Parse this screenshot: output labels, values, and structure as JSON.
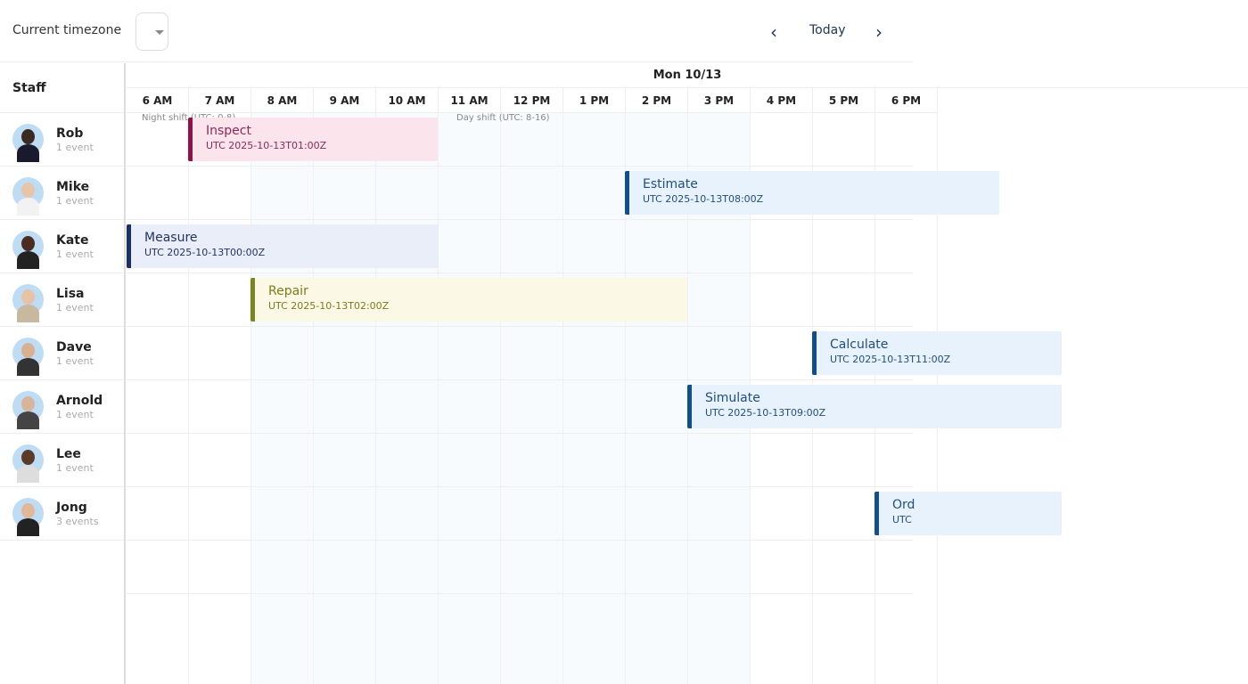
{
  "toolbar": {
    "timezone_label": "Current timezone",
    "timezone_value": "",
    "today": "Today",
    "prev_icon": "chevron-left-icon",
    "next_icon": "chevron-right-icon"
  },
  "staff_header": "Staff",
  "date": "Mon 10/13",
  "hours": [
    "6 AM",
    "7 AM",
    "8 AM",
    "9 AM",
    "10 AM",
    "11 AM",
    "12 PM",
    "1 PM",
    "2 PM",
    "3 PM",
    "4 PM",
    "5 PM",
    "6 PM"
  ],
  "shifts": [
    {
      "label": "Night shift (UTC: 0-8)"
    },
    {
      "label": "Day shift (UTC: 8-16)"
    }
  ],
  "staff": [
    {
      "name": "Rob",
      "count": "1 event"
    },
    {
      "name": "Mike",
      "count": "1 event"
    },
    {
      "name": "Kate",
      "count": "1 event"
    },
    {
      "name": "Lisa",
      "count": "1 event"
    },
    {
      "name": "Dave",
      "count": "1 event"
    },
    {
      "name": "Arnold",
      "count": "1 event"
    },
    {
      "name": "Lee",
      "count": "1 event"
    },
    {
      "name": "Jong",
      "count": "3 events"
    }
  ],
  "events": [
    {
      "title": "Inspect",
      "sub": "UTC 2025-10-13T01:00Z",
      "row": 0,
      "start": 1,
      "end": 5,
      "bg": "#fce4ec",
      "bar": "#8e1245",
      "fg": "#8b2a55"
    },
    {
      "title": "Estimate",
      "sub": "UTC 2025-10-13T08:00Z",
      "row": 1,
      "start": 8,
      "end": 14,
      "bg": "#e8f2fc",
      "bar": "#0f4f8c",
      "fg": "#1f4f80"
    },
    {
      "title": "Measure",
      "sub": "UTC 2025-10-13T00:00Z",
      "row": 2,
      "start": 0,
      "end": 5,
      "bg": "#eaeef8",
      "bar": "#1b2f6b",
      "fg": "#223465"
    },
    {
      "title": "Repair",
      "sub": "UTC 2025-10-13T02:00Z",
      "row": 3,
      "start": 2,
      "end": 9,
      "bg": "#fbf9e6",
      "bar": "#76871f",
      "fg": "#7b7b1c"
    },
    {
      "title": "Calculate",
      "sub": "UTC 2025-10-13T11:00Z",
      "row": 4,
      "start": 11,
      "end": 15,
      "bg": "#e8f2fc",
      "bar": "#0f4f8c",
      "fg": "#1f4f80"
    },
    {
      "title": "Simulate",
      "sub": "UTC 2025-10-13T09:00Z",
      "row": 5,
      "start": 9,
      "end": 15,
      "bg": "#e8f2fc",
      "bar": "#0f4f8c",
      "fg": "#1f4f80"
    },
    {
      "title": "Ord",
      "sub": "UTC",
      "row": 7,
      "start": 12,
      "end": 15,
      "bg": "#e8f2fc",
      "bar": "#0f4f8c",
      "fg": "#1f4f80"
    }
  ]
}
